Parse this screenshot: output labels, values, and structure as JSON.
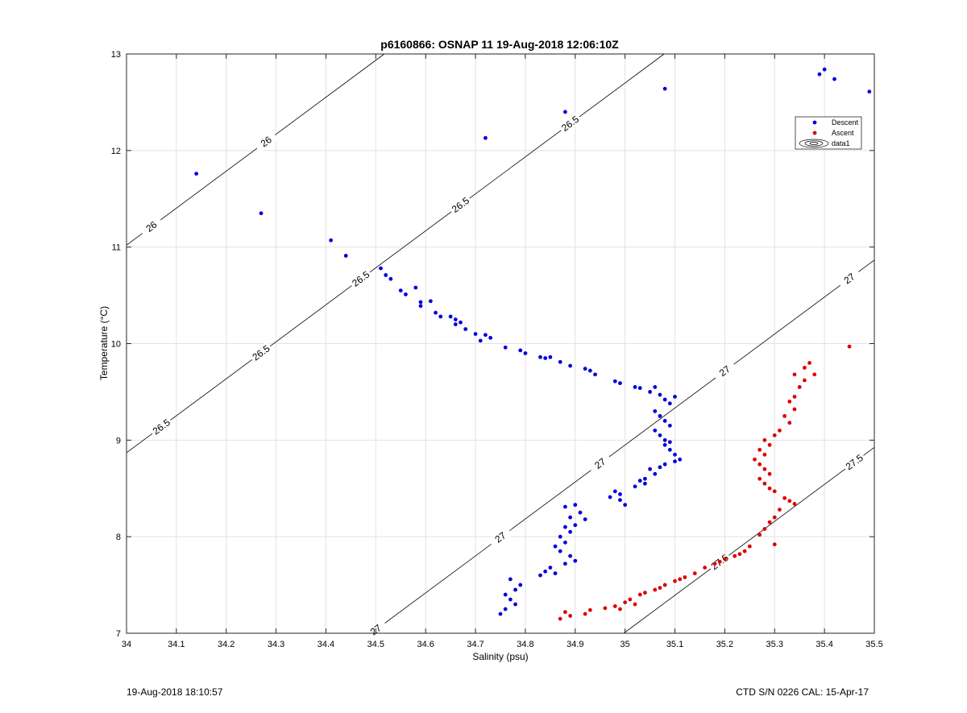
{
  "chart_data": {
    "type": "scatter",
    "title": "p6160866: OSNAP 11 19-Aug-2018 12:06:10Z",
    "xlabel": "Salinity (psu)",
    "ylabel": "Temperature (°C)",
    "xlim": [
      34,
      35.5
    ],
    "ylim": [
      7,
      13
    ],
    "xticks": [
      34,
      34.1,
      34.2,
      34.3,
      34.4,
      34.5,
      34.6,
      34.7,
      34.8,
      34.9,
      35,
      35.1,
      35.2,
      35.3,
      35.4,
      35.5
    ],
    "xtick_labels": [
      "34",
      "34.1",
      "34.2",
      "34.3",
      "34.4",
      "34.5",
      "34.6",
      "34.7",
      "34.8",
      "34.9",
      "35",
      "35.1",
      "35.2",
      "35.3",
      "35.4",
      "35.5"
    ],
    "yticks": [
      7,
      8,
      9,
      10,
      11,
      12,
      13
    ],
    "ytick_labels": [
      "7",
      "8",
      "9",
      "10",
      "11",
      "12",
      "13"
    ],
    "grid": true,
    "legend": {
      "position": "top-right",
      "entries": [
        "Descent",
        "Ascent",
        "data1"
      ]
    },
    "series": [
      {
        "name": "Descent",
        "color": "#0000dd",
        "points": [
          [
            34.14,
            11.76
          ],
          [
            34.27,
            11.35
          ],
          [
            34.41,
            11.07
          ],
          [
            34.44,
            10.91
          ],
          [
            34.51,
            10.78
          ],
          [
            34.52,
            10.71
          ],
          [
            34.53,
            10.67
          ],
          [
            34.55,
            10.55
          ],
          [
            34.56,
            10.51
          ],
          [
            34.58,
            10.58
          ],
          [
            34.59,
            10.43
          ],
          [
            34.59,
            10.39
          ],
          [
            34.61,
            10.44
          ],
          [
            34.62,
            10.32
          ],
          [
            34.63,
            10.28
          ],
          [
            34.65,
            10.28
          ],
          [
            34.66,
            10.25
          ],
          [
            34.66,
            10.2
          ],
          [
            34.67,
            10.22
          ],
          [
            34.68,
            10.15
          ],
          [
            34.7,
            10.1
          ],
          [
            34.71,
            10.03
          ],
          [
            34.72,
            10.09
          ],
          [
            34.73,
            10.06
          ],
          [
            34.76,
            9.96
          ],
          [
            34.79,
            9.93
          ],
          [
            34.8,
            9.9
          ],
          [
            34.83,
            9.86
          ],
          [
            34.84,
            9.85
          ],
          [
            34.85,
            9.86
          ],
          [
            34.87,
            9.81
          ],
          [
            34.89,
            9.77
          ],
          [
            34.92,
            9.74
          ],
          [
            34.93,
            9.72
          ],
          [
            34.94,
            9.68
          ],
          [
            34.98,
            9.61
          ],
          [
            34.99,
            9.59
          ],
          [
            35.02,
            9.55
          ],
          [
            35.03,
            9.54
          ],
          [
            35.05,
            9.5
          ],
          [
            35.06,
            9.55
          ],
          [
            35.07,
            9.47
          ],
          [
            35.08,
            9.42
          ],
          [
            35.09,
            9.38
          ],
          [
            35.1,
            9.45
          ],
          [
            35.06,
            9.3
          ],
          [
            35.07,
            9.25
          ],
          [
            35.08,
            9.2
          ],
          [
            35.09,
            9.15
          ],
          [
            35.06,
            9.1
          ],
          [
            35.07,
            9.05
          ],
          [
            35.08,
            9.0
          ],
          [
            35.09,
            8.98
          ],
          [
            35.08,
            8.95
          ],
          [
            35.09,
            8.9
          ],
          [
            35.1,
            8.85
          ],
          [
            35.11,
            8.8
          ],
          [
            35.1,
            8.78
          ],
          [
            35.08,
            8.75
          ],
          [
            35.07,
            8.72
          ],
          [
            35.05,
            8.7
          ],
          [
            35.06,
            8.65
          ],
          [
            35.04,
            8.6
          ],
          [
            35.03,
            8.58
          ],
          [
            35.02,
            8.52
          ],
          [
            35.04,
            8.55
          ],
          [
            34.98,
            8.47
          ],
          [
            34.99,
            8.44
          ],
          [
            34.97,
            8.41
          ],
          [
            34.99,
            8.38
          ],
          [
            35.0,
            8.33
          ],
          [
            34.9,
            8.33
          ],
          [
            34.88,
            8.31
          ],
          [
            34.91,
            8.25
          ],
          [
            34.89,
            8.2
          ],
          [
            34.92,
            8.18
          ],
          [
            34.9,
            8.12
          ],
          [
            34.88,
            8.1
          ],
          [
            34.89,
            8.05
          ],
          [
            34.87,
            8.0
          ],
          [
            34.88,
            7.94
          ],
          [
            34.86,
            7.9
          ],
          [
            34.87,
            7.85
          ],
          [
            34.89,
            7.8
          ],
          [
            34.9,
            7.75
          ],
          [
            34.88,
            7.72
          ],
          [
            34.85,
            7.68
          ],
          [
            34.84,
            7.64
          ],
          [
            34.86,
            7.62
          ],
          [
            34.83,
            7.6
          ],
          [
            34.79,
            7.5
          ],
          [
            34.77,
            7.56
          ],
          [
            34.78,
            7.45
          ],
          [
            34.76,
            7.4
          ],
          [
            34.77,
            7.35
          ],
          [
            34.78,
            7.3
          ],
          [
            34.76,
            7.25
          ],
          [
            34.75,
            7.2
          ],
          [
            34.72,
            12.13
          ],
          [
            34.88,
            12.4
          ],
          [
            35.08,
            12.64
          ],
          [
            35.39,
            12.79
          ],
          [
            35.4,
            12.84
          ],
          [
            35.42,
            12.74
          ],
          [
            35.49,
            12.61
          ]
        ]
      },
      {
        "name": "Ascent",
        "color": "#dd0000",
        "points": [
          [
            35.45,
            9.97
          ],
          [
            35.37,
            9.8
          ],
          [
            35.36,
            9.75
          ],
          [
            35.38,
            9.68
          ],
          [
            35.36,
            9.62
          ],
          [
            35.34,
            9.68
          ],
          [
            35.35,
            9.55
          ],
          [
            35.34,
            9.45
          ],
          [
            35.33,
            9.4
          ],
          [
            35.34,
            9.32
          ],
          [
            35.32,
            9.25
          ],
          [
            35.33,
            9.18
          ],
          [
            35.31,
            9.1
          ],
          [
            35.3,
            9.05
          ],
          [
            35.28,
            9.0
          ],
          [
            35.29,
            8.95
          ],
          [
            35.27,
            8.9
          ],
          [
            35.28,
            8.85
          ],
          [
            35.26,
            8.8
          ],
          [
            35.27,
            8.75
          ],
          [
            35.28,
            8.7
          ],
          [
            35.29,
            8.65
          ],
          [
            35.27,
            8.6
          ],
          [
            35.28,
            8.55
          ],
          [
            35.29,
            8.5
          ],
          [
            35.3,
            8.47
          ],
          [
            35.32,
            8.4
          ],
          [
            35.33,
            8.37
          ],
          [
            35.34,
            8.34
          ],
          [
            35.31,
            8.28
          ],
          [
            35.3,
            8.2
          ],
          [
            35.29,
            8.15
          ],
          [
            35.28,
            8.08
          ],
          [
            35.27,
            8.02
          ],
          [
            35.3,
            7.92
          ],
          [
            35.25,
            7.9
          ],
          [
            35.24,
            7.85
          ],
          [
            35.23,
            7.82
          ],
          [
            35.22,
            7.8
          ],
          [
            35.2,
            7.77
          ],
          [
            35.19,
            7.74
          ],
          [
            35.18,
            7.72
          ],
          [
            35.16,
            7.68
          ],
          [
            35.14,
            7.62
          ],
          [
            35.12,
            7.58
          ],
          [
            35.11,
            7.56
          ],
          [
            35.1,
            7.54
          ],
          [
            35.08,
            7.5
          ],
          [
            35.07,
            7.47
          ],
          [
            35.06,
            7.45
          ],
          [
            35.04,
            7.42
          ],
          [
            35.03,
            7.4
          ],
          [
            35.01,
            7.35
          ],
          [
            35.0,
            7.32
          ],
          [
            34.98,
            7.28
          ],
          [
            34.96,
            7.26
          ],
          [
            34.93,
            7.24
          ],
          [
            34.92,
            7.2
          ],
          [
            34.89,
            7.18
          ],
          [
            34.88,
            7.22
          ],
          [
            34.87,
            7.15
          ],
          [
            35.02,
            7.3
          ],
          [
            34.99,
            7.25
          ]
        ]
      }
    ],
    "contours": [
      {
        "label": "26",
        "label_x": [
          34.05,
          34.28
        ]
      },
      {
        "label": "26.5",
        "label_x": [
          34.07,
          34.27,
          34.47,
          34.67,
          34.89
        ]
      },
      {
        "label": "27",
        "label_x": [
          34.5,
          34.75,
          34.95,
          35.2,
          35.45
        ]
      },
      {
        "label": "27.5",
        "label_x": [
          35.19,
          35.46
        ]
      }
    ]
  },
  "footer": {
    "left": "19-Aug-2018 18:10:57",
    "right": "CTD S/N 0226  CAL: 15-Apr-17"
  }
}
